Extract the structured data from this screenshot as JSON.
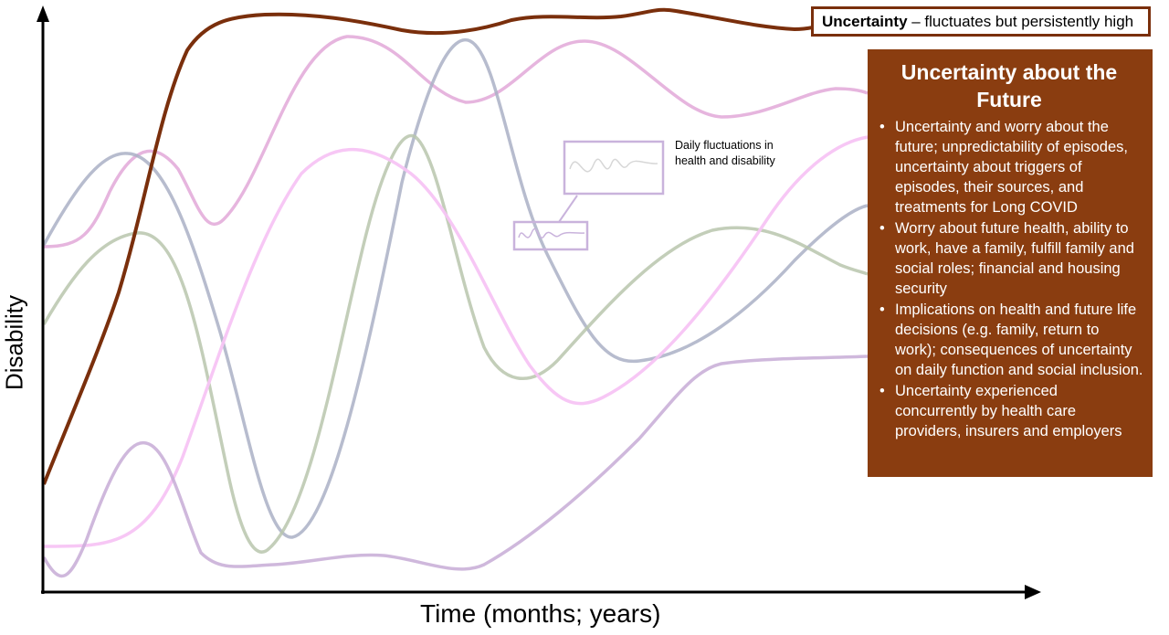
{
  "axes": {
    "y_label": "Disability",
    "x_label": "Time (months; years)"
  },
  "legend": {
    "term": "Uncertainty",
    "description": " – fluctuates but persistently high"
  },
  "info_box": {
    "title": "Uncertainty about the Future",
    "bullets": [
      "Uncertainty and worry about the future; unpredictability of episodes, uncertainty about triggers of episodes, their sources, and treatments for Long COVID",
      "Worry about future health, ability to work, have a family, fulfill family and social roles; financial and housing security",
      "Implications on health and future life decisions (e.g. family, return to work); consequences of uncertainty on daily function and social inclusion.",
      "Uncertainty experienced concurrently by health care providers, insurers and employers"
    ]
  },
  "inset": {
    "note": "Daily fluctuations in health and disability"
  },
  "colors": {
    "uncertainty_line": "#7a2f0c",
    "info_box_bg": "#8a3d10",
    "pink_curve": "#e0a3d6",
    "blue_curve": "#aab0c6",
    "green_curve": "#b8c5ad",
    "light_pink_curve": "#f7c4f4",
    "purple_curve": "#c7abd6",
    "inset_border": "#c9b3dc"
  }
}
